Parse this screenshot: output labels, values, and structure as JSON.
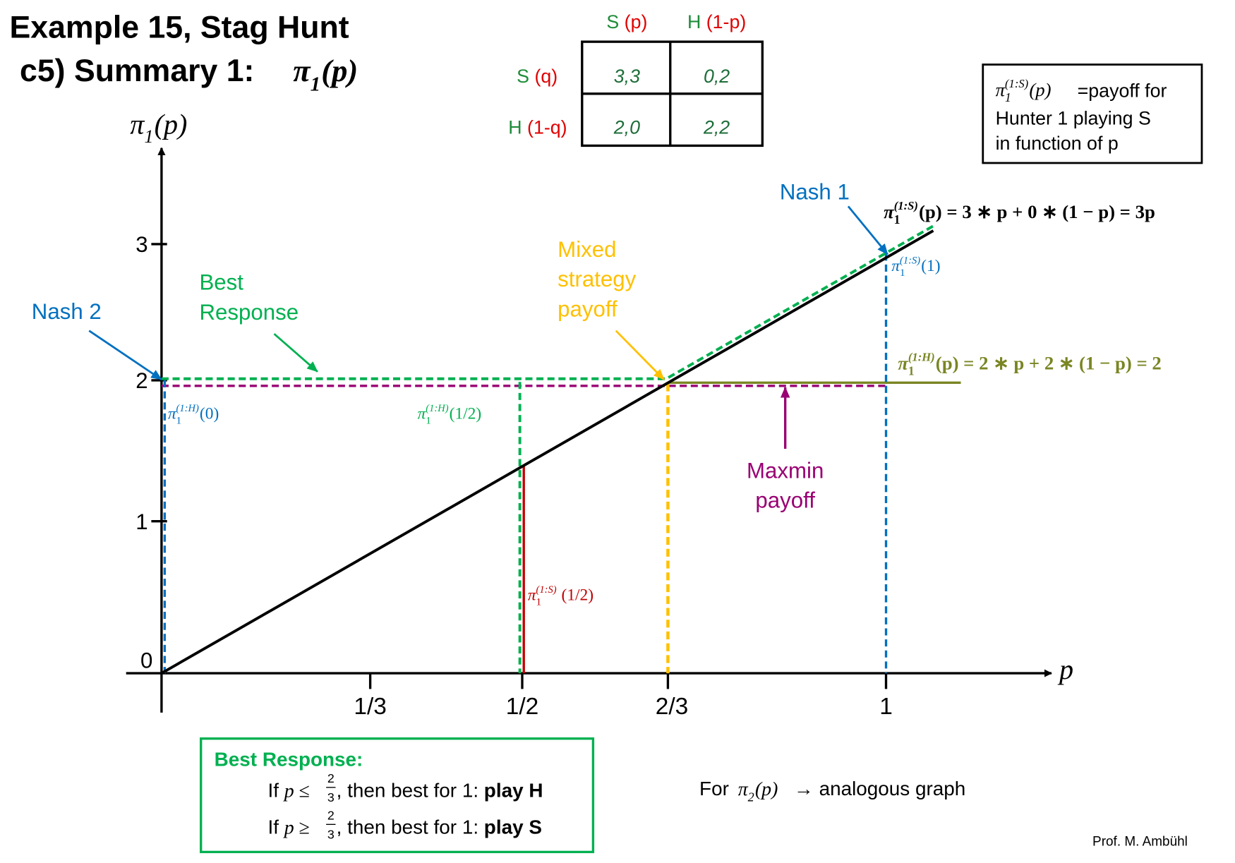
{
  "title": {
    "line1": "Example 15, Stag Hunt",
    "line2": "c5) Summary 1: ",
    "math": {
      "base": "π",
      "sub": "1",
      "arg": "(p)"
    }
  },
  "payoff_table": {
    "col_headers": [
      {
        "strategy": "S",
        "prob": " (p)"
      },
      {
        "strategy": "H",
        "prob": " (1-p)"
      }
    ],
    "row_headers": [
      {
        "strategy": "S",
        "prob": " (q)"
      },
      {
        "strategy": "H",
        "prob": " (1-q)"
      }
    ],
    "cells": [
      [
        "3,3",
        "0,2"
      ],
      [
        "2,0",
        "2,2"
      ]
    ]
  },
  "definition_box": {
    "math": {
      "base": "π",
      "sub": "1",
      "sup": "(1:S)",
      "arg": "(p)"
    },
    "lines": [
      "=payoff for",
      "Hunter 1 playing S",
      "in function of p"
    ]
  },
  "graph": {
    "y_axis_label": {
      "base": "π",
      "sub": "1",
      "arg": "(p)"
    },
    "x_axis_label": "p",
    "y_ticks": [
      "0",
      "1",
      "2",
      "3"
    ],
    "x_ticks": [
      "1/3",
      "1/2",
      "2/3",
      "1"
    ],
    "annotations": {
      "nash1": "Nash 1",
      "nash2": "Nash 2",
      "best_response": [
        "Best",
        "Response"
      ],
      "mixed": [
        "Mixed",
        "strategy",
        "payoff"
      ],
      "maxmin": [
        "Maxmin",
        "payoff"
      ],
      "formula_s": {
        "base": "π",
        "sub": "1",
        "sup": "(1:S)",
        "arg": "(p) = 3 ∗ p + 0 ∗ (1 − p) = 3p"
      },
      "formula_h": {
        "base": "π",
        "sub": "1",
        "sup": "(1:H)",
        "arg": "(p) = 2 ∗ p + 2 ∗ (1 − p) = 2"
      },
      "label_s1": {
        "base": "π",
        "sub": "1",
        "sup": "(1:S)",
        "arg": "(1)"
      },
      "label_h0": {
        "base": "π",
        "sub": "1",
        "sup": "(1:H)",
        "arg": "(0)"
      },
      "label_h_half": {
        "base": "π",
        "sub": "1",
        "sup": "(1:H)",
        "arg": "(1/2)"
      },
      "label_s_half": {
        "base": "π",
        "sub": "1",
        "sup": "(1:S)",
        "arg": " (1/2)"
      }
    }
  },
  "best_response_box": {
    "title": "Best Response:",
    "lines": [
      {
        "pre": "If ",
        "var": "p",
        "rel": " ≤ ",
        "num": "2",
        "den": "3",
        "post": ", then best for 1: ",
        "bold": "play H"
      },
      {
        "pre": "If ",
        "var": "p",
        "rel": " ≥ ",
        "num": "2",
        "den": "3",
        "post": ", then best for 1: ",
        "bold": "play S"
      }
    ]
  },
  "footer": {
    "pre": "For ",
    "math": {
      "base": "π",
      "sub": "2",
      "arg": "(p)"
    },
    "post": "→ analogous graph"
  },
  "credit": "Prof. M. Ambühl"
}
